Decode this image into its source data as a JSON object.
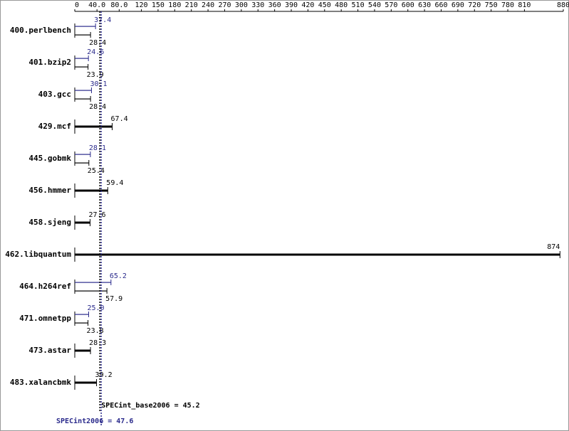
{
  "chart_data": {
    "type": "bar",
    "orientation": "horizontal",
    "categories": [
      "400.perlbench",
      "401.bzip2",
      "403.gcc",
      "429.mcf",
      "445.gobmk",
      "456.hmmer",
      "458.sjeng",
      "462.libquantum",
      "464.h264ref",
      "471.omnetpp",
      "473.astar",
      "483.xalancbmk"
    ],
    "series": [
      {
        "name": "SPECint2006",
        "color": "#2b2b8c",
        "values": [
          37.4,
          24.6,
          30.1,
          null,
          28.1,
          null,
          null,
          null,
          65.2,
          25.0,
          null,
          null
        ],
        "value_labels": [
          "37.4",
          "24.6",
          "30.1",
          null,
          "28.1",
          null,
          null,
          null,
          "65.2",
          "25.0",
          null,
          null
        ]
      },
      {
        "name": "SPECint_base2006",
        "color": "#000000",
        "values": [
          28.4,
          23.9,
          28.4,
          67.4,
          25.4,
          59.4,
          27.6,
          874,
          57.9,
          23.8,
          28.3,
          39.2
        ],
        "value_labels": [
          "28.4",
          "23.9",
          "28.4",
          "67.4",
          "25.4",
          "59.4",
          "27.6",
          "874",
          "57.9",
          "23.8",
          "28.3",
          "39.2"
        ]
      }
    ],
    "xlim": [
      0,
      880
    ],
    "xticks": [
      0,
      {
        "value": 40,
        "label": "40.0"
      },
      {
        "value": 80,
        "label": "80.0"
      },
      120,
      150,
      180,
      210,
      240,
      270,
      300,
      330,
      360,
      390,
      420,
      450,
      480,
      510,
      540,
      570,
      600,
      630,
      660,
      690,
      720,
      750,
      780,
      810,
      880
    ],
    "reference_lines": [
      {
        "label": "SPECint_base2006 = 45.2",
        "value": 45.2,
        "color": "#000000"
      },
      {
        "label": "SPECint2006 = 47.6",
        "value": 47.6,
        "color": "#2b2b8c"
      }
    ]
  }
}
